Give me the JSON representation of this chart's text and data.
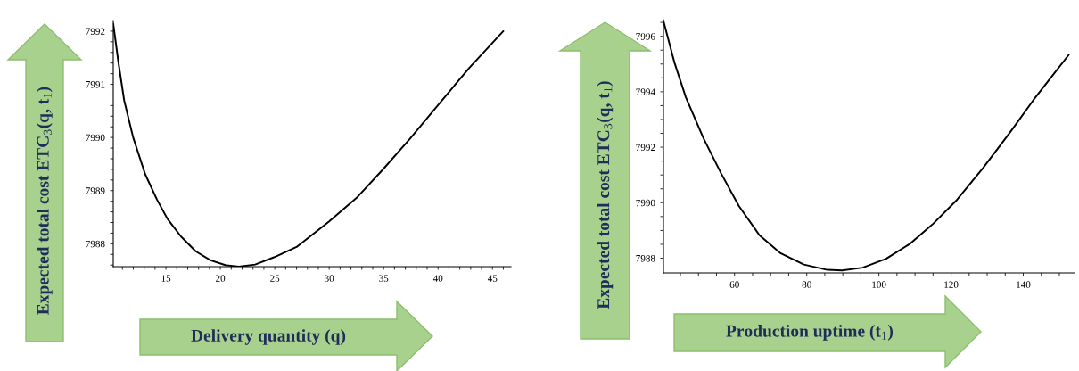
{
  "chart_data": [
    {
      "type": "line",
      "xlabel": "Delivery quantity (q)",
      "ylabel": "Expected total cost ETC$_{3}$(q, t$_{1}$)",
      "grid": false,
      "legend": false,
      "marker": "none",
      "line_style": "solid",
      "xlim": [
        10.16,
        46.7
      ],
      "ylim": [
        7987.57,
        7992.2
      ],
      "xticks": [
        {
          "value": 11,
          "label": null
        },
        {
          "value": 12,
          "label": null
        },
        {
          "value": 13,
          "label": null
        },
        {
          "value": 14,
          "label": null
        },
        15,
        {
          "value": 16,
          "label": null
        },
        {
          "value": 17,
          "label": null
        },
        {
          "value": 18,
          "label": null
        },
        {
          "value": 19,
          "label": null
        },
        20,
        {
          "value": 21,
          "label": null
        },
        {
          "value": 22,
          "label": null
        },
        {
          "value": 23,
          "label": null
        },
        {
          "value": 24,
          "label": null
        },
        25,
        {
          "value": 26,
          "label": null
        },
        {
          "value": 27,
          "label": null
        },
        {
          "value": 28,
          "label": null
        },
        {
          "value": 29,
          "label": null
        },
        30,
        {
          "value": 31,
          "label": null
        },
        {
          "value": 32,
          "label": null
        },
        {
          "value": 33,
          "label": null
        },
        {
          "value": 34,
          "label": null
        },
        35,
        {
          "value": 36,
          "label": null
        },
        {
          "value": 37,
          "label": null
        },
        {
          "value": 38,
          "label": null
        },
        {
          "value": 39,
          "label": null
        },
        40,
        {
          "value": 41,
          "label": null
        },
        {
          "value": 42,
          "label": null
        },
        {
          "value": 43,
          "label": null
        },
        {
          "value": 44,
          "label": null
        },
        45,
        {
          "value": 46,
          "label": null
        }
      ],
      "yticks": [
        {
          "value": 7987.6,
          "label": null
        },
        {
          "value": 7987.8,
          "label": null
        },
        7988,
        {
          "value": 7988.2,
          "label": null
        },
        {
          "value": 7988.4,
          "label": null
        },
        {
          "value": 7988.6,
          "label": null
        },
        {
          "value": 7988.8,
          "label": null
        },
        7989,
        {
          "value": 7989.2,
          "label": null
        },
        {
          "value": 7989.4,
          "label": null
        },
        {
          "value": 7989.6,
          "label": null
        },
        {
          "value": 7989.8,
          "label": null
        },
        7990,
        {
          "value": 7990.2,
          "label": null
        },
        {
          "value": 7990.4,
          "label": null
        },
        {
          "value": 7990.6,
          "label": null
        },
        {
          "value": 7990.8,
          "label": null
        },
        7991,
        {
          "value": 7991.2,
          "label": null
        },
        {
          "value": 7991.4,
          "label": null
        },
        {
          "value": 7991.6,
          "label": null
        },
        {
          "value": 7991.8,
          "label": null
        },
        7992
      ],
      "x": [
        10.16,
        10.63,
        11.17,
        11.99,
        13.09,
        14.18,
        15.14,
        16.37,
        17.73,
        19.1,
        20.46,
        21.7,
        23.2,
        24.97,
        27.0,
        30.0,
        32.5,
        34.9,
        37.4,
        40.0,
        42.87,
        46.0
      ],
      "series": [
        {
          "color": "#000000",
          "values": [
            7992.14,
            7991.42,
            7990.69,
            7990.0,
            7989.31,
            7988.83,
            7988.47,
            7988.14,
            7987.86,
            7987.69,
            7987.6,
            7987.57,
            7987.61,
            7987.75,
            7987.94,
            7988.42,
            7988.86,
            7989.39,
            7989.97,
            7990.61,
            7991.31,
            7992.0
          ]
        }
      ]
    },
    {
      "type": "line",
      "xlabel": "Production uptime (t$_{1}$)",
      "ylabel": "Expected total cost ETC$_{3}$(q, t$_{1}$)",
      "grid": false,
      "legend": false,
      "marker": "none",
      "line_style": "solid",
      "xlim": [
        40.3,
        154.2
      ],
      "ylim": [
        7987.47,
        7996.6
      ],
      "xticks": [
        {
          "value": 45,
          "label": null
        },
        {
          "value": 50,
          "label": null
        },
        {
          "value": 55,
          "label": null
        },
        60,
        {
          "value": 65,
          "label": null
        },
        {
          "value": 70,
          "label": null
        },
        {
          "value": 75,
          "label": null
        },
        80,
        {
          "value": 85,
          "label": null
        },
        {
          "value": 90,
          "label": null
        },
        {
          "value": 95,
          "label": null
        },
        100,
        {
          "value": 105,
          "label": null
        },
        {
          "value": 110,
          "label": null
        },
        {
          "value": 115,
          "label": null
        },
        120,
        {
          "value": 125,
          "label": null
        },
        {
          "value": 130,
          "label": null
        },
        {
          "value": 135,
          "label": null
        },
        140,
        {
          "value": 145,
          "label": null
        },
        {
          "value": 150,
          "label": null
        }
      ],
      "yticks": [
        7988,
        {
          "value": 7988.5,
          "label": null
        },
        {
          "value": 7989,
          "label": null
        },
        {
          "value": 7989.5,
          "label": null
        },
        7990,
        {
          "value": 7990.5,
          "label": null
        },
        {
          "value": 7991,
          "label": null
        },
        {
          "value": 7991.5,
          "label": null
        },
        7992,
        {
          "value": 7992.5,
          "label": null
        },
        {
          "value": 7993,
          "label": null
        },
        {
          "value": 7993.5,
          "label": null
        },
        7994,
        {
          "value": 7994.5,
          "label": null
        },
        {
          "value": 7995,
          "label": null
        },
        {
          "value": 7995.5,
          "label": null
        },
        7996,
        {
          "value": 7996.5,
          "label": null
        }
      ],
      "x": [
        40.3,
        43.3,
        46.5,
        51.4,
        56.3,
        61.2,
        66.9,
        72.6,
        79.2,
        85.7,
        89.8,
        95.5,
        102.0,
        108.5,
        115.1,
        121.6,
        128.9,
        136.3,
        142.8,
        148.5,
        152.6
      ],
      "series": [
        {
          "color": "#000000",
          "values": [
            7996.55,
            7995.07,
            7993.8,
            7992.32,
            7991.05,
            7989.88,
            7988.83,
            7988.19,
            7987.77,
            7987.58,
            7987.56,
            7987.66,
            7987.98,
            7988.51,
            7989.25,
            7990.1,
            7991.26,
            7992.53,
            7993.7,
            7994.65,
            7995.33
          ]
        }
      ]
    }
  ]
}
